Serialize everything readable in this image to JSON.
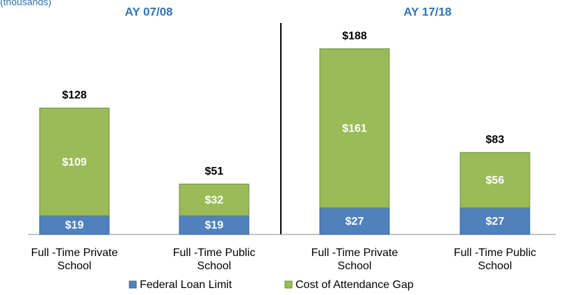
{
  "chart_data": {
    "type": "stacked_bar",
    "subtitle": "(thousands)",
    "group_labels": [
      "AY 07/08",
      "AY 17/18"
    ],
    "categories": [
      "Full -Time Private School",
      "Full -Time Public School",
      "Full -Time Private School",
      "Full -Time Public School"
    ],
    "series": [
      {
        "name": "Federal Loan Limit",
        "color": "#4f81bd",
        "values": [
          19,
          19,
          27,
          27
        ],
        "value_labels": [
          "$19",
          "$19",
          "$27",
          "$27"
        ]
      },
      {
        "name": "Cost of Attendance Gap",
        "color": "#9bbb59",
        "values": [
          109,
          32,
          161,
          56
        ],
        "value_labels": [
          "$109",
          "$32",
          "$161",
          "$56"
        ]
      }
    ],
    "totals": [
      128,
      51,
      188,
      83
    ],
    "total_labels": [
      "$128",
      "$51",
      "$188",
      "$83"
    ],
    "legend": "bottom"
  }
}
